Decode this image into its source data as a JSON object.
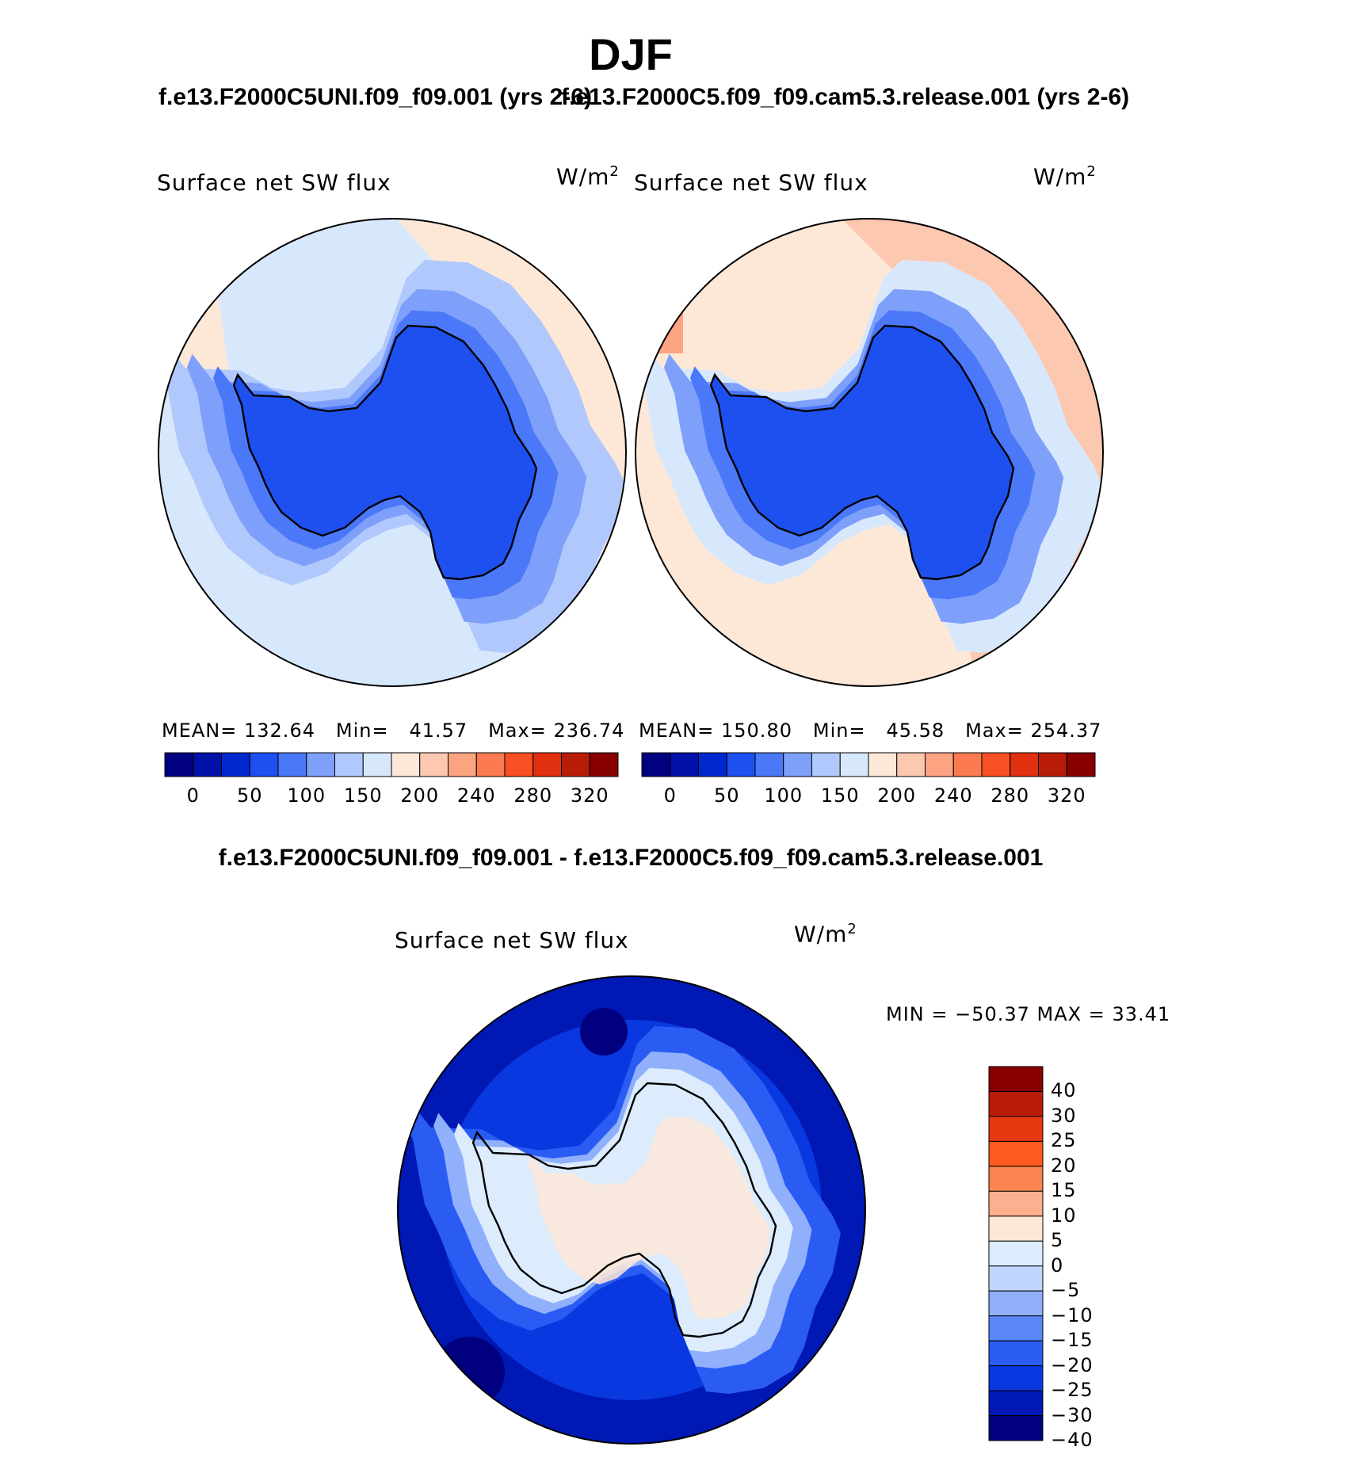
{
  "main_title": "DJF",
  "panels": [
    {
      "case_title": "f.e13.F2000C5UNI.f09_f09.001 (yrs 2-6)",
      "variable_label": "Surface net SW flux",
      "units_base": "W/m",
      "units_sup": "2",
      "stats": {
        "mean_label": "MEAN=",
        "mean": "132.64",
        "min_label": "Min=",
        "min": "41.57",
        "max_label": "Max=",
        "max": "236.74"
      },
      "style": "a"
    },
    {
      "case_title": "f.e13.F2000C5.f09_f09.cam5.3.release.001 (yrs 2-6)",
      "variable_label": "Surface net SW flux",
      "units_base": "W/m",
      "units_sup": "2",
      "stats": {
        "mean_label": "MEAN=",
        "mean": "150.80",
        "min_label": "Min=",
        "min": "45.58",
        "max_label": "Max=",
        "max": "254.37"
      },
      "style": "b"
    }
  ],
  "colorbar_top": {
    "colors": [
      "#000080",
      "#0010a8",
      "#0028d0",
      "#1e50f0",
      "#4a78f8",
      "#7ea0fa",
      "#b0c8fc",
      "#d8e8fc",
      "#fde8d8",
      "#fcc8b0",
      "#fca482",
      "#fc7a50",
      "#f85024",
      "#e03010",
      "#b81c08",
      "#880000"
    ],
    "tick_labels": [
      "0",
      "50",
      "100",
      "150",
      "200",
      "240",
      "280",
      "320"
    ],
    "levels": [
      0,
      25,
      50,
      75,
      100,
      125,
      150,
      175,
      200,
      220,
      240,
      260,
      280,
      300,
      320
    ]
  },
  "difference_panel": {
    "title": "f.e13.F2000C5UNI.f09_f09.001 - f.e13.F2000C5.f09_f09.cam5.3.release.001",
    "variable_label": "Surface net SW flux",
    "units_base": "W/m",
    "units_sup": "2",
    "minmax_text": "MIN = −50.37 MAX =   33.41"
  },
  "colorbar_diff": {
    "colors": [
      "#000080",
      "#0018b4",
      "#0a38e0",
      "#2a5cf4",
      "#5a86f8",
      "#90b0fc",
      "#c0d6fc",
      "#dcecfc",
      "#fde8d8",
      "#fcb090",
      "#fc8450",
      "#fc5a20",
      "#e83810",
      "#b81c08",
      "#880000"
    ],
    "tick_labels": [
      "40",
      "30",
      "25",
      "20",
      "15",
      "10",
      "5",
      "0",
      "−5",
      "−10",
      "−15",
      "−20",
      "−25",
      "−30",
      "−40"
    ]
  },
  "chart_data": [
    {
      "type": "heatmap",
      "projection": "south-polar-stereographic",
      "title": "f.e13.F2000C5UNI.f09_f09.001 (yrs 2-6)",
      "variable": "Surface net SW flux",
      "units": "W/m2",
      "season": "DJF",
      "mean": 132.64,
      "min": 41.57,
      "max": 236.74,
      "contour_levels": [
        0,
        25,
        50,
        75,
        100,
        125,
        150,
        175,
        200,
        220,
        240,
        260,
        280,
        300,
        320
      ]
    },
    {
      "type": "heatmap",
      "projection": "south-polar-stereographic",
      "title": "f.e13.F2000C5.f09_f09.cam5.3.release.001 (yrs 2-6)",
      "variable": "Surface net SW flux",
      "units": "W/m2",
      "season": "DJF",
      "mean": 150.8,
      "min": 45.58,
      "max": 254.37,
      "contour_levels": [
        0,
        25,
        50,
        75,
        100,
        125,
        150,
        175,
        200,
        220,
        240,
        260,
        280,
        300,
        320
      ]
    },
    {
      "type": "heatmap",
      "projection": "south-polar-stereographic",
      "title": "f.e13.F2000C5UNI.f09_f09.001 - f.e13.F2000C5.f09_f09.cam5.3.release.001",
      "variable": "Surface net SW flux",
      "units": "W/m2",
      "min": -50.37,
      "max": 33.41,
      "contour_levels": [
        -40,
        -30,
        -25,
        -20,
        -15,
        -10,
        -5,
        0,
        5,
        10,
        15,
        20,
        25,
        30,
        40
      ]
    }
  ]
}
